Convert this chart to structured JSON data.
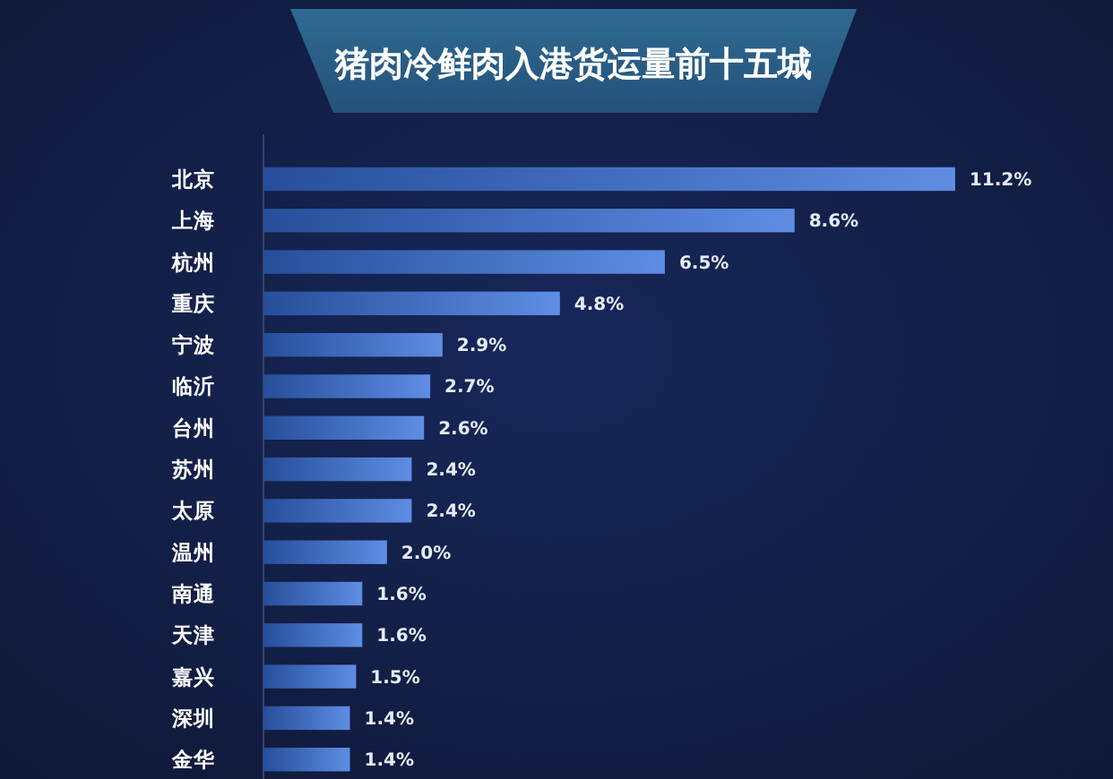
{
  "chart_data": {
    "type": "bar",
    "orientation": "horizontal",
    "title": "猪肉冷鲜肉入港货运量前十五城",
    "categories": [
      "北京",
      "上海",
      "杭州",
      "重庆",
      "宁波",
      "临沂",
      "台州",
      "苏州",
      "太原",
      "温州",
      "南通",
      "天津",
      "嘉兴",
      "深圳",
      "金华"
    ],
    "values": [
      11.2,
      8.6,
      6.5,
      4.8,
      2.9,
      2.7,
      2.6,
      2.4,
      2.4,
      2.0,
      1.6,
      1.6,
      1.5,
      1.4,
      1.4
    ],
    "value_labels": [
      "11.2%",
      "8.6%",
      "6.5%",
      "4.8%",
      "2.9%",
      "2.7%",
      "2.6%",
      "2.4%",
      "2.4%",
      "2.0%",
      "1.6%",
      "1.6%",
      "1.5%",
      "1.4%",
      "1.4%"
    ],
    "color": "#3670dc",
    "tick_labels": "y"
  }
}
